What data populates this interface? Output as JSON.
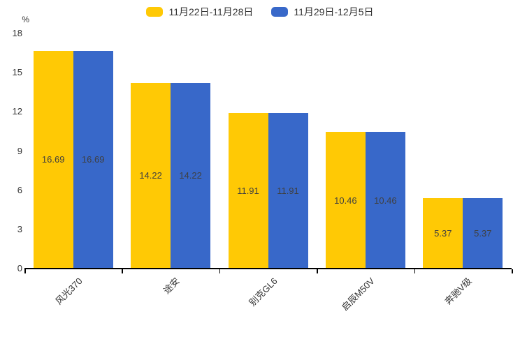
{
  "chart_data": {
    "type": "bar",
    "title": "",
    "ylabel": "%",
    "ylim": [
      0,
      18
    ],
    "yticks": [
      0,
      3,
      6,
      9,
      12,
      15,
      18
    ],
    "grid": false,
    "legend_position": "top",
    "categories": [
      "风光370",
      "途安",
      "别克GL6",
      "启辰M50V",
      "奔驰V级"
    ],
    "series": [
      {
        "name": "11月22日-11月28日",
        "color": "#FFC905",
        "values": [
          16.69,
          14.22,
          11.91,
          10.46,
          5.37
        ]
      },
      {
        "name": "11月29日-12月5日",
        "color": "#3868C9",
        "values": [
          16.69,
          14.22,
          11.91,
          10.46,
          5.37
        ]
      }
    ],
    "bar_labels": true,
    "bar_label_color": "#404040",
    "axis_color": "#000000",
    "text_color": "#333333"
  }
}
